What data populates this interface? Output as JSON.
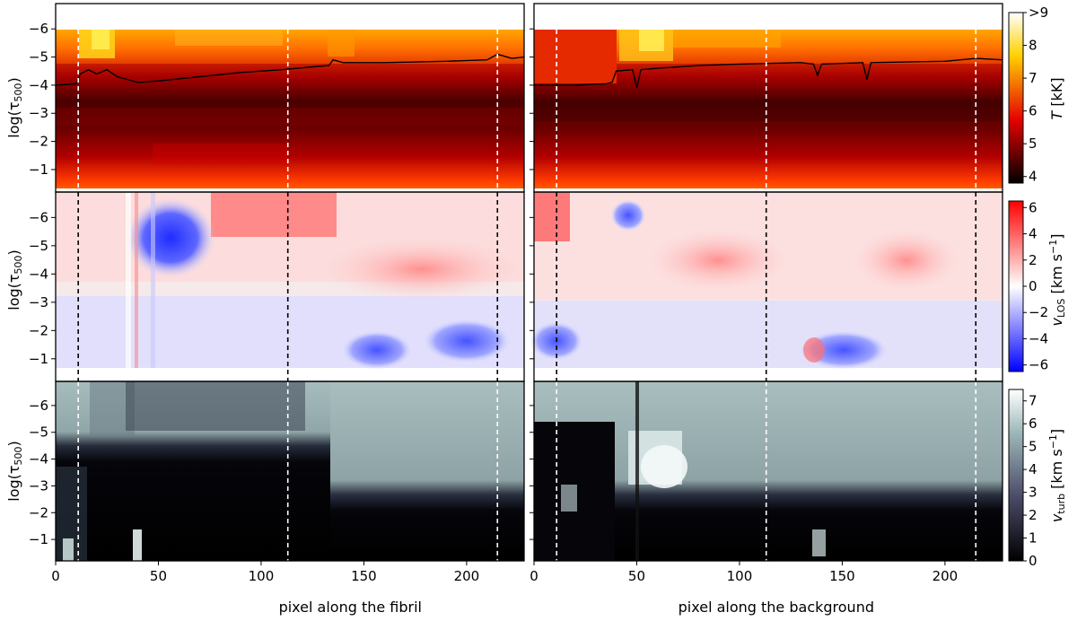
{
  "chart_data": {
    "type": "heatmap",
    "panels": [
      {
        "column": "fibril",
        "rows": [
          {
            "quantity": "temperature",
            "colorbar_label": "T [kK]"
          },
          {
            "quantity": "velocity_los",
            "colorbar_label": "v_LOS [km s^-1]"
          },
          {
            "quantity": "velocity_turb",
            "colorbar_label": "v_turb [km s^-1]"
          }
        ]
      },
      {
        "column": "background"
      }
    ],
    "ylabel": "log(τ500)",
    "xlabel_left": "pixel along the fibril",
    "xlabel_right": "pixel along the background",
    "x_ticks": [
      0,
      50,
      100,
      150,
      200
    ],
    "xlim": [
      0,
      228
    ],
    "y_ticks": [
      "-6",
      "-5",
      "-4",
      "-3",
      "-2",
      "-1"
    ],
    "ylim": [
      -0.2,
      -6.9
    ],
    "colorbars": [
      {
        "name": "temperature",
        "ticks": [
          "4",
          "5",
          "6",
          "7",
          "8",
          ">9"
        ],
        "range": [
          3.8,
          9
        ],
        "colormap": "hot"
      },
      {
        "name": "v_los",
        "ticks": [
          "6",
          "4",
          "2",
          "0",
          "-2",
          "-4",
          "-6"
        ],
        "range": [
          -6.5,
          6.5
        ],
        "colormap": "bwr"
      },
      {
        "name": "v_turb",
        "ticks": [
          "7",
          "6",
          "5",
          "4",
          "3",
          "2",
          "1",
          "0"
        ],
        "range": [
          0,
          7.5
        ],
        "colormap": "bone"
      }
    ],
    "vertical_markers": [
      {
        "x": 11,
        "marker": "square"
      },
      {
        "x": 113,
        "marker": "circle"
      },
      {
        "x": 215,
        "marker": "triangle"
      }
    ],
    "marker_colors": {
      "fibril": "#e4211c",
      "background": "#999999"
    },
    "tau_line_fibril": [
      [
        0,
        -4.0
      ],
      [
        10,
        -4.05
      ],
      [
        12,
        -4.4
      ],
      [
        16,
        -4.55
      ],
      [
        20,
        -4.4
      ],
      [
        25,
        -4.55
      ],
      [
        30,
        -4.3
      ],
      [
        40,
        -4.1
      ],
      [
        50,
        -4.15
      ],
      [
        70,
        -4.3
      ],
      [
        90,
        -4.45
      ],
      [
        110,
        -4.55
      ],
      [
        125,
        -4.65
      ],
      [
        133,
        -4.7
      ],
      [
        135,
        -4.9
      ],
      [
        140,
        -4.8
      ],
      [
        160,
        -4.8
      ],
      [
        190,
        -4.85
      ],
      [
        210,
        -4.9
      ],
      [
        215,
        -5.1
      ],
      [
        222,
        -4.95
      ],
      [
        228,
        -5.0
      ]
    ],
    "tau_line_background": [
      [
        0,
        -4.0
      ],
      [
        20,
        -4.0
      ],
      [
        35,
        -4.05
      ],
      [
        38,
        -4.1
      ],
      [
        40,
        -4.5
      ],
      [
        48,
        -4.55
      ],
      [
        50,
        -3.9
      ],
      [
        52,
        -4.55
      ],
      [
        60,
        -4.6
      ],
      [
        80,
        -4.7
      ],
      [
        100,
        -4.75
      ],
      [
        130,
        -4.8
      ],
      [
        136,
        -4.75
      ],
      [
        138,
        -4.35
      ],
      [
        140,
        -4.75
      ],
      [
        160,
        -4.8
      ],
      [
        162,
        -4.2
      ],
      [
        164,
        -4.8
      ],
      [
        200,
        -4.85
      ],
      [
        215,
        -4.95
      ],
      [
        228,
        -4.9
      ]
    ]
  }
}
